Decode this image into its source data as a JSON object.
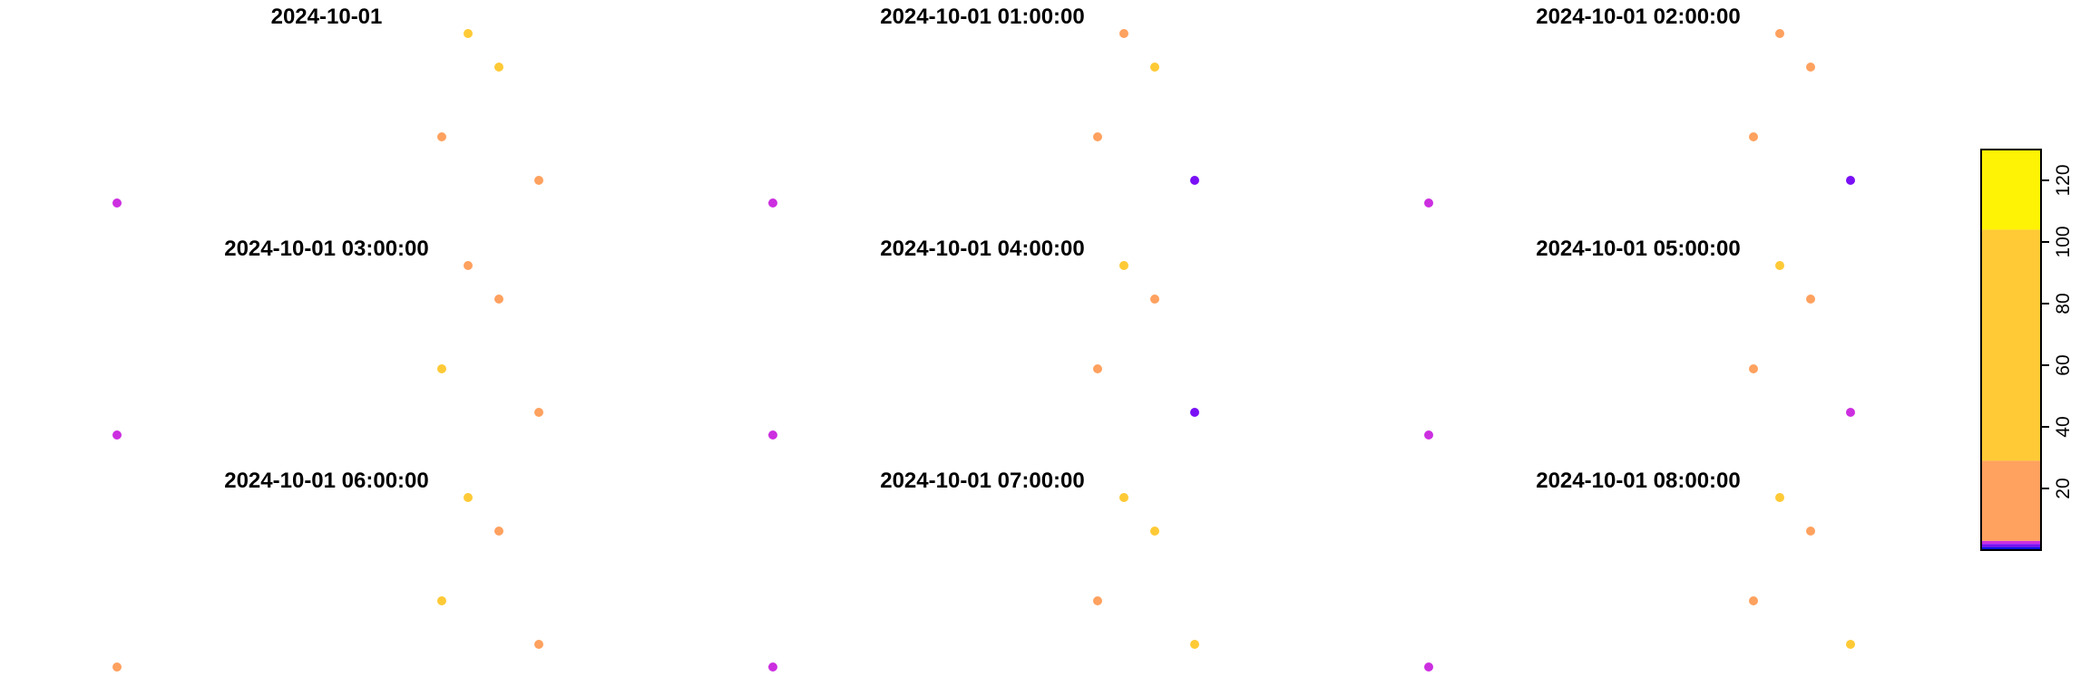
{
  "chart_data": {
    "type": "scatter",
    "panels": [
      {
        "title": "2024-10-01",
        "values": [
          2,
          102,
          78,
          4,
          6
        ]
      },
      {
        "title": "2024-10-01 01:00:00",
        "values": [
          2,
          8,
          34,
          20,
          1
        ]
      },
      {
        "title": "2024-10-01 02:00:00",
        "values": [
          2,
          18,
          28,
          23,
          1
        ]
      },
      {
        "title": "2024-10-01 03:00:00",
        "values": [
          2,
          26,
          14,
          95,
          4
        ]
      },
      {
        "title": "2024-10-01 04:00:00",
        "values": [
          2,
          50,
          22,
          23,
          1
        ]
      },
      {
        "title": "2024-10-01 05:00:00",
        "values": [
          2,
          40,
          21,
          19,
          2
        ]
      },
      {
        "title": "2024-10-01 06:00:00",
        "values": [
          3,
          60,
          14,
          30,
          5
        ]
      },
      {
        "title": "2024-10-01 07:00:00",
        "values": [
          2,
          83,
          48,
          24,
          45
        ]
      },
      {
        "title": "2024-10-01 08:00:00",
        "values": [
          2,
          79,
          23,
          19,
          51
        ]
      }
    ],
    "legend": {
      "type": "binned colorbar",
      "position": "right",
      "ticks": [
        20,
        40,
        60,
        80,
        100,
        120
      ],
      "range": [
        0,
        130
      ],
      "bins": [
        {
          "from": 0,
          "to": 1,
          "color": "#1010E0"
        },
        {
          "from": 1,
          "to": 2,
          "color": "#7A10F5"
        },
        {
          "from": 2,
          "to": 3,
          "color": "#CC2FE0"
        },
        {
          "from": 3,
          "to": 29,
          "color": "#FFA15F"
        },
        {
          "from": 29,
          "to": 104,
          "color": "#FFCA36"
        },
        {
          "from": 104,
          "to": 130,
          "color": "#FFF305"
        }
      ]
    },
    "point_colors": {
      "blue": "#1A10E0",
      "violet": "#7A10F5",
      "magenta": "#CC2FE0",
      "pink": "#FF6F8C",
      "orange": "#FFA15F",
      "gold": "#FFCA36",
      "yellow": "#FFF305"
    },
    "grid": false,
    "axes_visible": false
  }
}
